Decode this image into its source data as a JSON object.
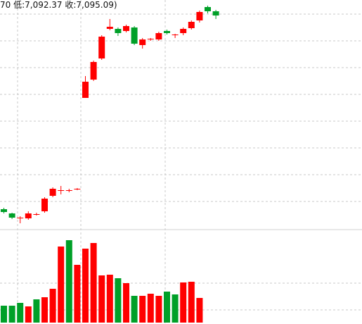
{
  "header": {
    "info_text": "70 低:7,092.37 收:7,095.09)"
  },
  "colors": {
    "up": "#ff0000",
    "down": "#00a028",
    "grid": "#c8c8c8",
    "divider": "#d0d0d0"
  },
  "chart_data": [
    {
      "type": "candlestick",
      "title": "",
      "price_range_note": "no axis labels visible; values in relative units (0 = bottom of price panel, 320 = top)",
      "candles": [
        {
          "o": 23.0,
          "c": 19.0,
          "h": 25.0,
          "l": 17.0
        },
        {
          "o": 17.0,
          "c": 11.0,
          "h": 18.0,
          "l": 9.0
        },
        {
          "o": 11.0,
          "c": 11.0,
          "h": 13.0,
          "l": 3.0
        },
        {
          "o": 10.0,
          "c": 17.0,
          "h": 20.0,
          "l": 8.0
        },
        {
          "o": 16.0,
          "c": 16.0,
          "h": 18.0,
          "l": 14.0
        },
        {
          "o": 20.0,
          "c": 38.0,
          "h": 40.0,
          "l": 18.0
        },
        {
          "o": 42.0,
          "c": 52.0,
          "h": 54.0,
          "l": 40.0
        },
        {
          "o": 49.0,
          "c": 50.0,
          "h": 56.0,
          "l": 44.0
        },
        {
          "o": 49.0,
          "c": 50.0,
          "h": 52.0,
          "l": 47.0
        },
        {
          "o": 51.0,
          "c": 52.0,
          "h": 53.0,
          "l": 50.0
        },
        {
          "o": 181.0,
          "c": 204.0,
          "h": 212.0,
          "l": 181.0
        },
        {
          "o": 207.0,
          "c": 232.0,
          "h": 234.0,
          "l": 205.0
        },
        {
          "o": 237.0,
          "c": 268.0,
          "h": 270.0,
          "l": 235.0
        },
        {
          "o": 279.0,
          "c": 282.0,
          "h": 293.0,
          "l": 277.0
        },
        {
          "o": 279.0,
          "c": 273.0,
          "h": 281.0,
          "l": 269.0
        },
        {
          "o": 276.0,
          "c": 283.0,
          "h": 285.0,
          "l": 274.0
        },
        {
          "o": 281.0,
          "c": 258.0,
          "h": 283.0,
          "l": 256.0
        },
        {
          "o": 256.0,
          "c": 264.0,
          "h": 266.0,
          "l": 251.0
        },
        {
          "o": 264.0,
          "c": 265.0,
          "h": 266.0,
          "l": 262.0
        },
        {
          "o": 264.0,
          "c": 273.0,
          "h": 275.0,
          "l": 262.0
        },
        {
          "o": 276.0,
          "c": 273.0,
          "h": 278.0,
          "l": 271.0
        },
        {
          "o": 270.0,
          "c": 271.0,
          "h": 272.0,
          "l": 266.0
        },
        {
          "o": 273.0,
          "c": 279.0,
          "h": 281.0,
          "l": 270.0
        },
        {
          "o": 280.0,
          "c": 289.0,
          "h": 291.0,
          "l": 278.0
        },
        {
          "o": 291.0,
          "c": 303.0,
          "h": 305.0,
          "l": 288.0
        },
        {
          "o": 310.0,
          "c": 304.0,
          "h": 312.0,
          "l": 301.0
        },
        {
          "o": 304.0,
          "c": 298.0,
          "h": 306.0,
          "l": 293.0
        }
      ]
    },
    {
      "type": "bar",
      "title": "",
      "note": "volume bars, relative units (0 = bottom of volume panel)",
      "up_flags": [
        false,
        false,
        false,
        true,
        false,
        true,
        true,
        true,
        false,
        true,
        true,
        true,
        true,
        true,
        false,
        true,
        false,
        true,
        true,
        true,
        false,
        false,
        true,
        true,
        true,
        false,
        false
      ],
      "values": [
        24,
        24,
        28,
        23,
        33,
        36,
        48,
        108,
        117,
        82,
        105,
        113,
        67,
        68,
        63,
        56,
        38,
        38,
        41,
        38,
        44,
        40,
        57,
        58,
        35,
        0,
        0
      ]
    }
  ]
}
